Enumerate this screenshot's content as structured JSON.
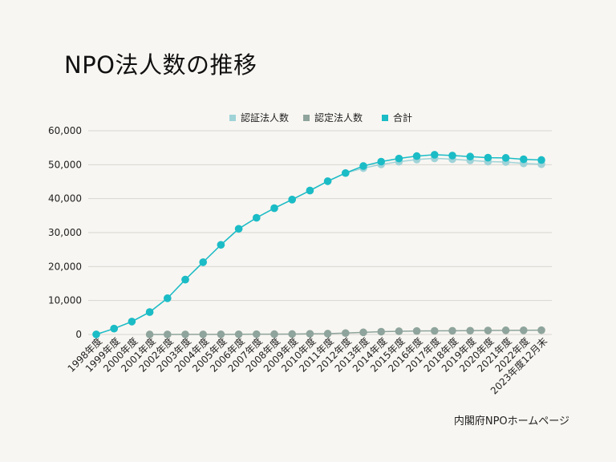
{
  "title": "NPO法人数の推移",
  "source": "内閣府NPOホームページ",
  "colors": {
    "certified": "#9fd3d8",
    "accredited": "#8ea49c",
    "total": "#1bbcc6",
    "grid": "#d9d6d0"
  },
  "chart_data": {
    "type": "line",
    "title": "NPO法人数の推移",
    "xlabel": "",
    "ylabel": "",
    "ylim": [
      0,
      60000
    ],
    "yticks": [
      0,
      10000,
      20000,
      30000,
      40000,
      50000,
      60000
    ],
    "ytick_labels": [
      "0",
      "10,000",
      "20,000",
      "30,000",
      "40,000",
      "50,000",
      "60,000"
    ],
    "legend_position": "top-center",
    "categories": [
      "1998年度",
      "1999年度",
      "2000年度",
      "2001年度",
      "2002年度",
      "2003年度",
      "2004年度",
      "2005年度",
      "2006年度",
      "2007年度",
      "2008年度",
      "2009年度",
      "2010年度",
      "2011年度",
      "2012年度",
      "2013年度",
      "2014年度",
      "2015年度",
      "2016年度",
      "2017年度",
      "2018年度",
      "2019年度",
      "2020年度",
      "2021年度",
      "2022年度",
      "2023年度12月末"
    ],
    "series": [
      {
        "name": "認証法人数",
        "key": "certified",
        "values": [
          23,
          1724,
          3800,
          6596,
          10664,
          16160,
          21280,
          26394,
          31115,
          34369,
          37192,
          39732,
          42385,
          45138,
          47540,
          48980,
          50087,
          50866,
          51515,
          51867,
          51604,
          51261,
          50896,
          50786,
          50370,
          50130
        ]
      },
      {
        "name": "認定法人数",
        "key": "accredited",
        "values": [
          null,
          null,
          null,
          3,
          12,
          22,
          30,
          40,
          58,
          80,
          93,
          127,
          198,
          244,
          407,
          630,
          821,
          955,
          1020,
          1064,
          1092,
          1124,
          1174,
          1215,
          1227,
          1257
        ]
      },
      {
        "name": "合計",
        "key": "total",
        "values": [
          23,
          1724,
          3800,
          6596,
          10664,
          16160,
          21280,
          26394,
          31115,
          34369,
          37192,
          39732,
          42385,
          45138,
          47540,
          49610,
          50908,
          51821,
          52535,
          52931,
          52696,
          52385,
          52070,
          52001,
          51597,
          51387
        ]
      }
    ]
  }
}
